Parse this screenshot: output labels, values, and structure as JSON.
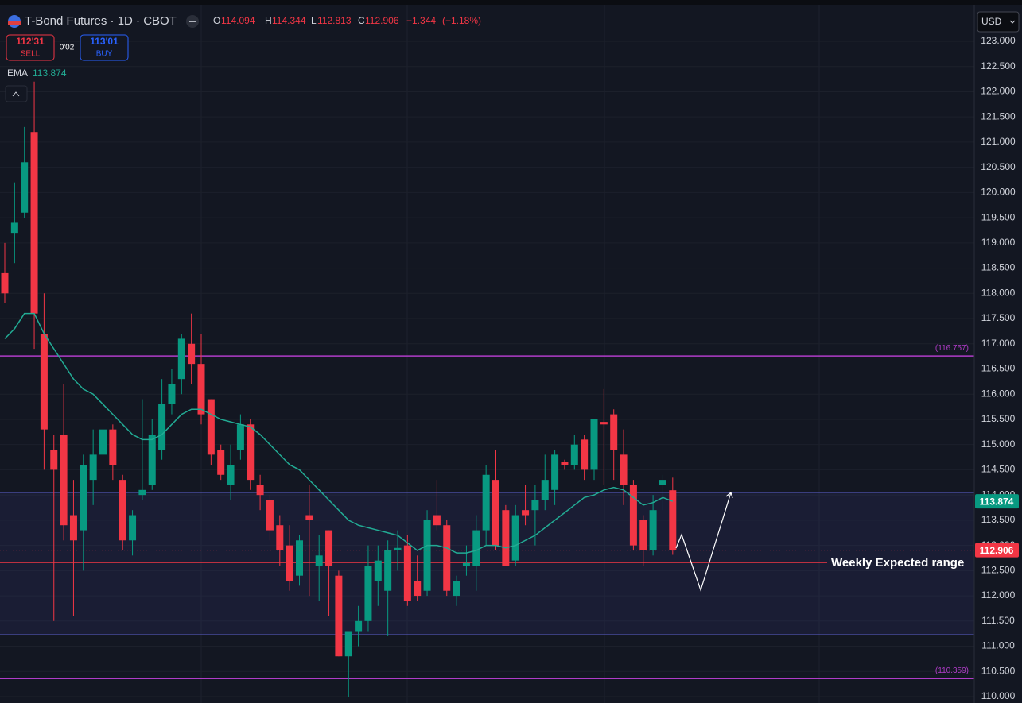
{
  "header": {
    "title": "T-Bond Futures · 1D · CBOT",
    "o": "O",
    "h": "H",
    "l": "L",
    "c": "C",
    "change": {
      "value": -1.344,
      "label": "−1.344"
    },
    "change_pct": {
      "value": -1.18,
      "label": "(−1.18%)"
    },
    "sell_price": "112'31",
    "sell": "SELL",
    "spread": "0'02",
    "buy_price": "113'01",
    "buy": "BUY",
    "currency": "USD"
  },
  "chart_data": {
    "type": "candlestick",
    "title": "T-Bond Futures · 1D · CBOT",
    "up_color": "#089981",
    "down_color": "#f23645",
    "open": [
      118.4,
      119.2,
      119.6,
      121.2,
      117.2,
      114.9,
      115.2,
      113.6,
      113.3,
      114.3,
      114.8,
      115.3,
      114.3,
      113.1,
      114.0,
      114.2,
      114.9,
      115.8,
      116.3,
      117.0,
      116.6,
      115.9,
      114.9,
      114.2,
      114.9,
      115.4,
      114.2,
      113.9,
      113.4,
      113.0,
      112.4,
      113.6,
      112.6,
      113.3,
      112.4,
      110.8,
      111.3,
      111.5,
      112.3,
      112.1,
      112.9,
      113.0,
      112.3,
      112.1,
      113.6,
      113.4,
      112.0,
      112.6,
      112.6,
      113.3,
      114.3,
      113.7,
      112.7,
      113.7,
      113.7,
      113.9,
      114.1,
      114.65,
      114.6,
      115.1,
      114.5,
      115.45,
      115.6,
      114.8,
      114.2,
      113.5,
      112.9,
      114.2,
      114.094
    ],
    "high": [
      119.0,
      120.2,
      121.3,
      122.2,
      118.0,
      115.2,
      116.2,
      114.3,
      114.8,
      115.3,
      115.5,
      115.4,
      114.4,
      113.7,
      115.9,
      115.5,
      116.3,
      116.5,
      117.2,
      117.6,
      117.2,
      115.9,
      115.0,
      115.0,
      115.6,
      115.5,
      114.4,
      114.0,
      113.6,
      113.4,
      113.2,
      114.2,
      113.2,
      113.3,
      112.5,
      111.3,
      111.8,
      113.0,
      113.0,
      113.1,
      113.3,
      113.2,
      112.8,
      113.7,
      114.3,
      113.5,
      112.4,
      113.0,
      113.6,
      114.6,
      114.9,
      113.8,
      113.8,
      114.2,
      114.2,
      114.8,
      114.9,
      114.7,
      115.2,
      115.2,
      115.5,
      116.1,
      115.7,
      115.3,
      114.3,
      113.6,
      114.0,
      114.4,
      114.344
    ],
    "low": [
      117.8,
      118.6,
      119.5,
      116.9,
      114.5,
      111.5,
      113.1,
      111.6,
      112.5,
      113.8,
      114.5,
      114.3,
      112.9,
      112.8,
      113.9,
      114.1,
      114.7,
      115.6,
      116.0,
      116.2,
      115.4,
      114.6,
      114.3,
      113.9,
      114.7,
      114.1,
      113.7,
      113.1,
      112.6,
      112.1,
      112.2,
      112.0,
      111.9,
      111.6,
      110.8,
      110.0,
      111.0,
      111.3,
      111.8,
      111.2,
      112.5,
      111.8,
      111.9,
      112.0,
      113.3,
      112.0,
      111.8,
      112.4,
      112.1,
      113.0,
      112.9,
      112.6,
      112.6,
      113.4,
      113.0,
      113.7,
      113.8,
      114.5,
      114.5,
      114.3,
      114.3,
      114.2,
      114.3,
      113.8,
      112.9,
      112.6,
      112.8,
      113.7,
      112.813
    ],
    "close": [
      118.0,
      119.4,
      120.6,
      117.6,
      115.3,
      114.5,
      113.4,
      113.1,
      114.6,
      114.8,
      115.3,
      114.6,
      113.1,
      113.6,
      114.1,
      115.2,
      115.8,
      116.2,
      117.1,
      116.6,
      115.6,
      114.8,
      114.4,
      114.6,
      115.4,
      114.3,
      114.0,
      113.3,
      112.9,
      112.3,
      113.1,
      113.5,
      112.8,
      112.6,
      110.8,
      111.3,
      111.5,
      112.6,
      112.7,
      112.9,
      112.95,
      111.9,
      112.0,
      113.5,
      113.4,
      112.1,
      112.3,
      112.65,
      113.3,
      114.4,
      113.0,
      112.6,
      113.6,
      113.6,
      113.9,
      114.3,
      114.8,
      114.6,
      115.0,
      114.5,
      115.5,
      115.4,
      114.9,
      114.2,
      113.0,
      112.9,
      113.7,
      114.3,
      112.906
    ],
    "ema": {
      "name": "EMA",
      "color": "#22ab94",
      "values": [
        117.1,
        117.3,
        117.6,
        117.6,
        117.2,
        116.9,
        116.6,
        116.3,
        116.1,
        116.0,
        115.8,
        115.6,
        115.4,
        115.2,
        115.1,
        115.1,
        115.2,
        115.4,
        115.6,
        115.7,
        115.7,
        115.6,
        115.5,
        115.45,
        115.4,
        115.35,
        115.2,
        115.0,
        114.8,
        114.6,
        114.5,
        114.3,
        114.1,
        113.9,
        113.7,
        113.5,
        113.4,
        113.35,
        113.3,
        113.25,
        113.2,
        113.05,
        112.9,
        113.0,
        113.0,
        112.95,
        112.85,
        112.85,
        112.9,
        113.0,
        113.0,
        112.95,
        113.0,
        113.1,
        113.2,
        113.35,
        113.5,
        113.65,
        113.8,
        113.95,
        114.0,
        114.1,
        114.15,
        114.1,
        113.95,
        113.8,
        113.85,
        113.95,
        113.874
      ]
    },
    "levels": [
      {
        "value": 116.757,
        "label": "(116.757)",
        "color": "#b03cc8"
      },
      {
        "value": 110.359,
        "label": "(110.359)",
        "color": "#b03cc8"
      }
    ],
    "range": {
      "name": "Weekly Expected range",
      "high": 114.05,
      "low": 111.23,
      "line": 112.66,
      "color": "#5b5fc7",
      "line_color": "#f23645"
    },
    "ylim": [
      109.874,
      123.819
    ],
    "yticks": [
      {
        "value": 110,
        "label": "110.000"
      },
      {
        "value": 110.5,
        "label": "110.500"
      },
      {
        "value": 111,
        "label": "111.000"
      },
      {
        "value": 111.5,
        "label": "111.500"
      },
      {
        "value": 112,
        "label": "112.000"
      },
      {
        "value": 112.5,
        "label": "112.500"
      },
      {
        "value": 113,
        "label": "113.000"
      },
      {
        "value": 113.5,
        "label": "113.500"
      },
      {
        "value": 114,
        "label": "114.000"
      },
      {
        "value": 114.5,
        "label": "114.500"
      },
      {
        "value": 115,
        "label": "115.000"
      },
      {
        "value": 115.5,
        "label": "115.500"
      },
      {
        "value": 116,
        "label": "116.000"
      },
      {
        "value": 116.5,
        "label": "116.500"
      },
      {
        "value": 117,
        "label": "117.000"
      },
      {
        "value": 117.5,
        "label": "117.500"
      },
      {
        "value": 118,
        "label": "118.000"
      },
      {
        "value": 118.5,
        "label": "118.500"
      },
      {
        "value": 119,
        "label": "119.000"
      },
      {
        "value": 119.5,
        "label": "119.500"
      },
      {
        "value": 120,
        "label": "120.000"
      },
      {
        "value": 120.5,
        "label": "120.500"
      },
      {
        "value": 121,
        "label": "121.000"
      },
      {
        "value": 121.5,
        "label": "121.500"
      },
      {
        "value": 122,
        "label": "122.000"
      },
      {
        "value": 122.5,
        "label": "122.500"
      },
      {
        "value": 123,
        "label": "123.000"
      }
    ],
    "grid": true
  }
}
